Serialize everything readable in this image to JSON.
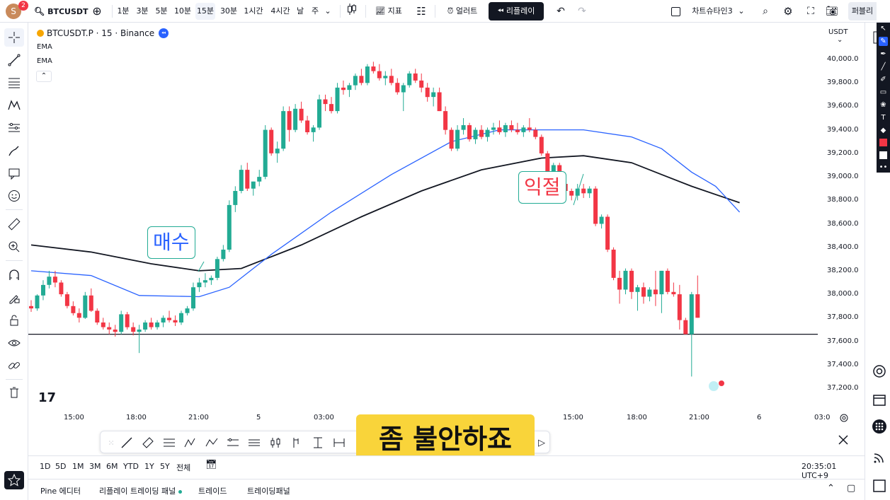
{
  "topbar": {
    "avatar_letter": "S",
    "avatar_badge": "2",
    "symbol": "BTCUSDT",
    "intervals": [
      "1분",
      "3분",
      "5분",
      "10분",
      "15분",
      "30분",
      "1시간",
      "4시간",
      "날",
      "주"
    ],
    "active_interval": "15분",
    "indicators_label": "지표",
    "alert_label": "얼러트",
    "replay_label": "리플레이",
    "layout_name": "차트슈타인3",
    "publish_label": "퍼블리"
  },
  "legend": {
    "symbol_line": "BTCUSDT.P · 15 · Binance",
    "indicators": [
      "EMA",
      "EMA"
    ]
  },
  "price_scale": {
    "currency": "USDT",
    "labels": [
      "40,000.0",
      "39,800.0",
      "39,600.0",
      "39,400.0",
      "39,200.0",
      "39,000.0",
      "38,800.0",
      "38,600.0",
      "38,400.0",
      "38,200.0",
      "38,000.0",
      "37,800.0",
      "37,600.0",
      "37,400.0",
      "37,200.0"
    ]
  },
  "time_scale": {
    "labels": [
      "15:00",
      "18:00",
      "21:00",
      "5",
      "03:00",
      "15:00",
      "18:00",
      "21:00",
      "6",
      "03:0"
    ]
  },
  "annotations": {
    "buy_label": "매수",
    "take_profit_label": "익절"
  },
  "subtitle": "좀 불안하죠",
  "rangebar": {
    "ranges": [
      "1D",
      "5D",
      "1M",
      "3M",
      "6M",
      "YTD",
      "1Y",
      "5Y",
      "전체"
    ],
    "clock": "20:35:01 UTC+9"
  },
  "bottom_panel": {
    "tabs": [
      "Pine 에디터",
      "리플레이 트레이딩 패널",
      "트레이드",
      "트레이딩패널"
    ]
  },
  "colors": {
    "up": "#22ab94",
    "down": "#f23645",
    "ema_fast": "#2962ff",
    "ema_slow": "#131722",
    "subtitle_bg": "#f9d43a"
  },
  "chart_data": {
    "type": "candlestick",
    "symbol": "BTCUSDT.P",
    "interval": "15",
    "ylim": [
      37150,
      40050
    ],
    "support_level": 37660,
    "candles": [
      [
        37900,
        37950,
        37850,
        37880
      ],
      [
        37880,
        38000,
        37860,
        37990
      ],
      [
        37990,
        38120,
        37950,
        38080
      ],
      [
        38080,
        38200,
        38050,
        38150
      ],
      [
        38150,
        38200,
        38060,
        38100
      ],
      [
        38100,
        38120,
        37980,
        38000
      ],
      [
        38000,
        38020,
        37880,
        37900
      ],
      [
        37900,
        37940,
        37820,
        37840
      ],
      [
        37840,
        37880,
        37760,
        37800
      ],
      [
        37800,
        38020,
        37790,
        37990
      ],
      [
        37990,
        38050,
        37850,
        37860
      ],
      [
        37860,
        37880,
        37740,
        37760
      ],
      [
        37760,
        37800,
        37700,
        37720
      ],
      [
        37720,
        37760,
        37660,
        37700
      ],
      [
        37700,
        37740,
        37640,
        37680
      ],
      [
        37680,
        37860,
        37660,
        37830
      ],
      [
        37830,
        37850,
        37700,
        37720
      ],
      [
        37720,
        37760,
        37650,
        37680
      ],
      [
        37680,
        37740,
        37500,
        37700
      ],
      [
        37700,
        37780,
        37680,
        37760
      ],
      [
        37760,
        37800,
        37700,
        37720
      ],
      [
        37720,
        37780,
        37700,
        37760
      ],
      [
        37760,
        37820,
        37720,
        37800
      ],
      [
        37800,
        37860,
        37760,
        37780
      ],
      [
        37780,
        37820,
        37730,
        37760
      ],
      [
        37760,
        37860,
        37740,
        37840
      ],
      [
        37840,
        37900,
        37820,
        37880
      ],
      [
        37880,
        38100,
        37860,
        38060
      ],
      [
        38060,
        38140,
        38020,
        38100
      ],
      [
        38100,
        38180,
        38060,
        38120
      ],
      [
        38120,
        38160,
        38080,
        38140
      ],
      [
        38140,
        38320,
        38120,
        38300
      ],
      [
        38300,
        38420,
        38280,
        38380
      ],
      [
        38380,
        38800,
        38360,
        38760
      ],
      [
        38760,
        38920,
        38700,
        38880
      ],
      [
        38880,
        39100,
        38860,
        39060
      ],
      [
        39060,
        39120,
        38880,
        38900
      ],
      [
        38900,
        38960,
        38840,
        38960
      ],
      [
        38960,
        39060,
        38920,
        39000
      ],
      [
        39000,
        39440,
        38980,
        39400
      ],
      [
        39400,
        39420,
        39180,
        39200
      ],
      [
        39200,
        39300,
        39120,
        39240
      ],
      [
        39240,
        39600,
        39220,
        39560
      ],
      [
        39560,
        39600,
        39300,
        39400
      ],
      [
        39400,
        39620,
        39380,
        39580
      ],
      [
        39580,
        39640,
        39460,
        39480
      ],
      [
        39480,
        39520,
        39360,
        39380
      ],
      [
        39380,
        39440,
        39300,
        39420
      ],
      [
        39420,
        39700,
        39400,
        39660
      ],
      [
        39660,
        39700,
        39560,
        39620
      ],
      [
        39620,
        39680,
        39540,
        39560
      ],
      [
        39560,
        39800,
        39540,
        39760
      ],
      [
        39760,
        39820,
        39700,
        39740
      ],
      [
        39740,
        39800,
        39680,
        39780
      ],
      [
        39780,
        39880,
        39740,
        39860
      ],
      [
        39860,
        39920,
        39780,
        39800
      ],
      [
        39800,
        39960,
        39780,
        39940
      ],
      [
        39940,
        39980,
        39880,
        39900
      ],
      [
        39900,
        39960,
        39820,
        39840
      ],
      [
        39840,
        39900,
        39780,
        39860
      ],
      [
        39860,
        39920,
        39780,
        39800
      ],
      [
        39800,
        39840,
        39700,
        39720
      ],
      [
        39720,
        39800,
        39560,
        39780
      ],
      [
        39780,
        39900,
        39760,
        39880
      ],
      [
        39880,
        39920,
        39800,
        39820
      ],
      [
        39820,
        39880,
        39720,
        39760
      ],
      [
        39760,
        39800,
        39640,
        39680
      ],
      [
        39680,
        39760,
        39600,
        39720
      ],
      [
        39720,
        39760,
        39560,
        39560
      ],
      [
        39560,
        39600,
        39360,
        39400
      ],
      [
        39400,
        39420,
        39220,
        39240
      ],
      [
        39240,
        39440,
        39220,
        39400
      ],
      [
        39400,
        39500,
        39360,
        39440
      ],
      [
        39440,
        39460,
        39300,
        39320
      ],
      [
        39320,
        39420,
        39280,
        39400
      ],
      [
        39400,
        39440,
        39320,
        39340
      ],
      [
        39340,
        39420,
        39300,
        39400
      ],
      [
        39400,
        39460,
        39360,
        39420
      ],
      [
        39420,
        39480,
        39360,
        39380
      ],
      [
        39380,
        39460,
        39340,
        39440
      ],
      [
        39440,
        39480,
        39380,
        39400
      ],
      [
        39400,
        39460,
        39360,
        39380
      ],
      [
        39380,
        39440,
        39340,
        39420
      ],
      [
        39420,
        39500,
        39380,
        39400
      ],
      [
        39400,
        39420,
        39320,
        39340
      ],
      [
        39340,
        39360,
        39180,
        39200
      ],
      [
        39200,
        39220,
        39020,
        39040
      ],
      [
        39040,
        39120,
        38980,
        39100
      ],
      [
        39100,
        39120,
        38920,
        38940
      ],
      [
        38940,
        38960,
        38860,
        38880
      ],
      [
        38880,
        38900,
        38800,
        38840
      ],
      [
        38840,
        38940,
        38800,
        38900
      ],
      [
        38900,
        38940,
        38820,
        38860
      ],
      [
        38860,
        38920,
        38820,
        38900
      ],
      [
        38900,
        38920,
        38580,
        38600
      ],
      [
        38600,
        38680,
        38560,
        38660
      ],
      [
        38660,
        38680,
        38360,
        38380
      ],
      [
        38380,
        38400,
        38120,
        38140
      ],
      [
        38140,
        38200,
        37920,
        38040
      ],
      [
        38040,
        38220,
        38000,
        38200
      ],
      [
        38200,
        38220,
        37960,
        38020
      ],
      [
        38020,
        38080,
        37860,
        38060
      ],
      [
        38060,
        38100,
        37920,
        37980
      ],
      [
        37980,
        38060,
        37940,
        38040
      ],
      [
        38040,
        38200,
        37900,
        38000
      ],
      [
        38000,
        38200,
        37840,
        38200
      ],
      [
        38200,
        38220,
        38000,
        38020
      ],
      [
        38020,
        38100,
        37980,
        38000
      ],
      [
        38000,
        38080,
        37700,
        37780
      ],
      [
        37780,
        37800,
        37660,
        37660
      ],
      [
        37660,
        38020,
        37300,
        38000
      ],
      [
        38000,
        38160,
        37800,
        37800
      ]
    ],
    "ema_fast": [
      [
        0,
        38200
      ],
      [
        10,
        38160
      ],
      [
        18,
        37990
      ],
      [
        28,
        37980
      ],
      [
        33,
        38060
      ],
      [
        40,
        38340
      ],
      [
        50,
        38700
      ],
      [
        60,
        39020
      ],
      [
        70,
        39300
      ],
      [
        78,
        39400
      ],
      [
        85,
        39400
      ],
      [
        92,
        39400
      ],
      [
        100,
        39340
      ],
      [
        105,
        39240
      ],
      [
        110,
        39040
      ],
      [
        114,
        38920
      ],
      [
        118,
        38700
      ]
    ],
    "ema_slow": [
      [
        0,
        38420
      ],
      [
        10,
        38360
      ],
      [
        20,
        38260
      ],
      [
        28,
        38200
      ],
      [
        35,
        38220
      ],
      [
        45,
        38420
      ],
      [
        55,
        38660
      ],
      [
        65,
        38880
      ],
      [
        75,
        39060
      ],
      [
        85,
        39160
      ],
      [
        92,
        39180
      ],
      [
        100,
        39120
      ],
      [
        105,
        39020
      ],
      [
        110,
        38920
      ],
      [
        118,
        38780
      ]
    ]
  }
}
